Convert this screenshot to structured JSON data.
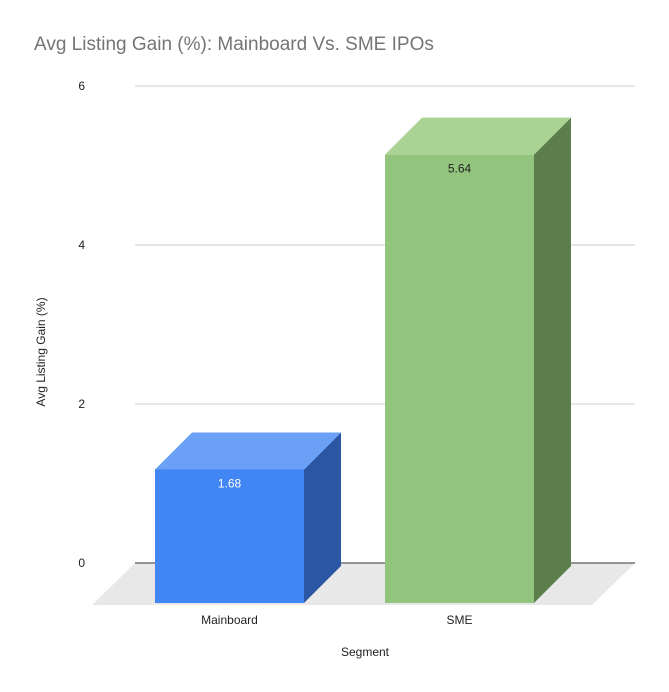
{
  "chart_data": {
    "type": "bar",
    "title": "Avg Listing Gain (%): Mainboard Vs. SME IPOs",
    "xlabel": "Segment",
    "ylabel": "Avg Listing Gain (%)",
    "categories": [
      "Mainboard",
      "SME"
    ],
    "values": [
      1.68,
      5.64
    ],
    "value_labels": [
      "1.68",
      "5.64"
    ],
    "ylim": [
      0,
      6
    ],
    "yticks": [
      "0",
      "2",
      "4",
      "6"
    ],
    "grid": true,
    "style": "3d",
    "colors": {
      "front": [
        "#4285f4",
        "#93c47d"
      ],
      "top": [
        "#6aa0f6",
        "#a8d394"
      ],
      "side": [
        "#2a56a3",
        "#5b7e4b"
      ],
      "floor": "#e8e8e8",
      "gridline": "#cccccc",
      "baseline": "#333333"
    },
    "label_colors": [
      "#ffffff",
      "#222222"
    ]
  }
}
